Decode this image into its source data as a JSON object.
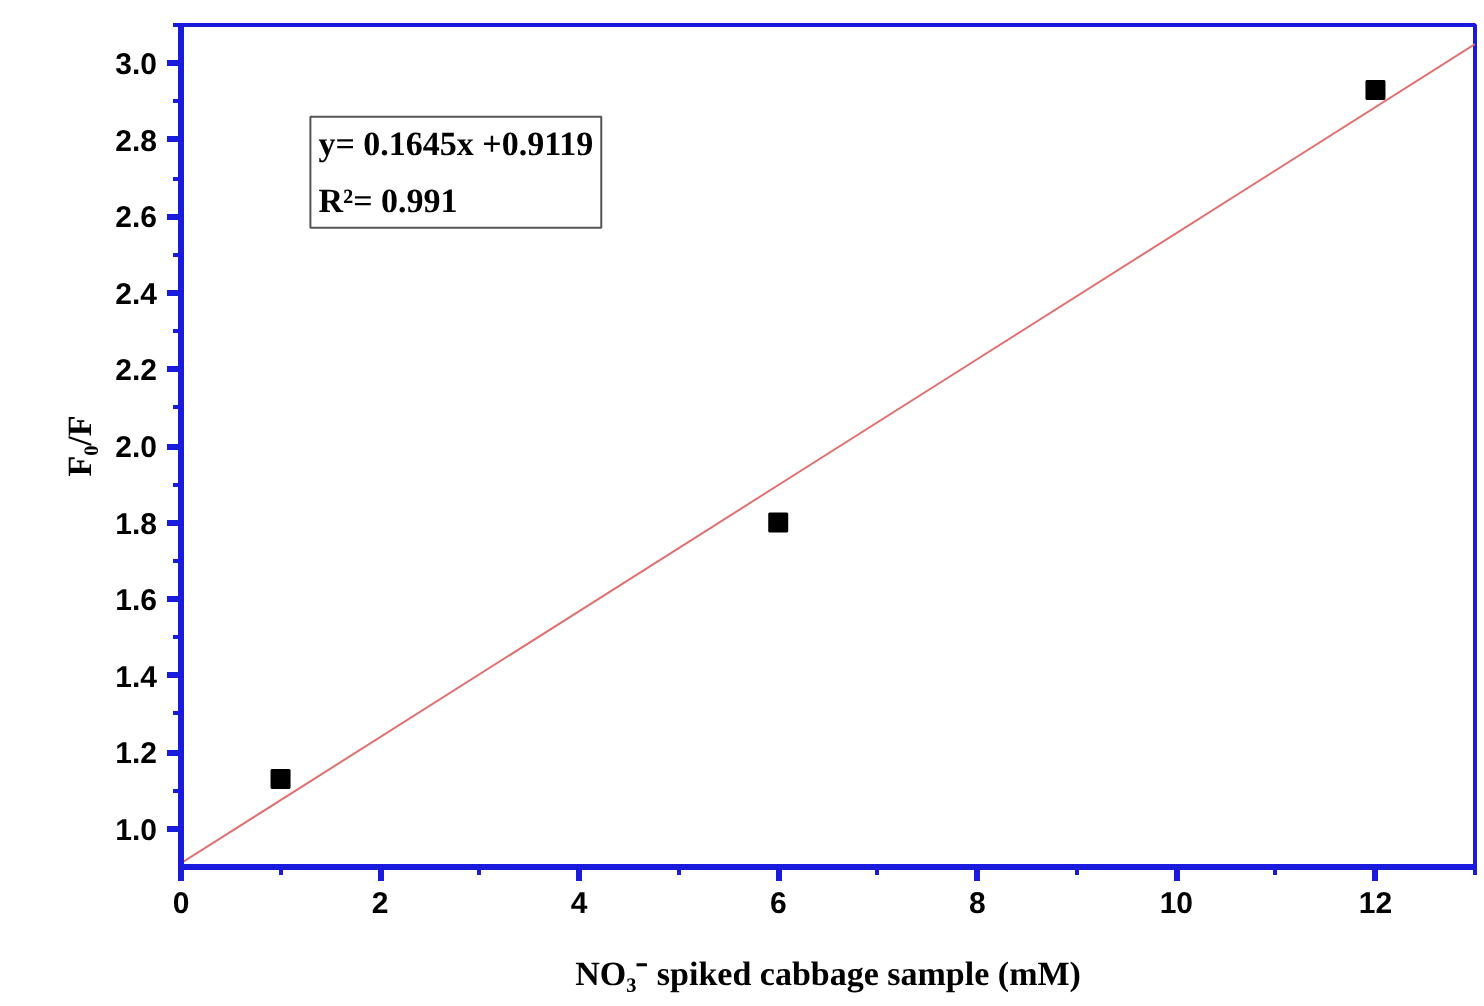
{
  "chart_data": {
    "type": "scatter",
    "xlabel": "NO₃⁻ spiked cabbage sample (mM)",
    "ylabel": "F₀/F",
    "annotations": [
      "y= 0.1645x +0.9119",
      "R²= 0.991"
    ],
    "series": [
      {
        "color": "#000000",
        "x": [
          1,
          6,
          12
        ],
        "values": [
          1.13,
          1.8,
          2.93
        ],
        "marker": "square"
      },
      {
        "type": "line",
        "color": "#e07070",
        "x": [
          0,
          13
        ],
        "values": [
          0.91,
          3.05
        ],
        "line_style": "solid",
        "marker": "none"
      }
    ],
    "xlim": [
      0,
      13
    ],
    "ylim": [
      0.9,
      3.1
    ],
    "xticks": [
      0,
      2,
      4,
      6,
      8,
      10,
      12
    ],
    "yticks": [
      {
        "value": 1.0,
        "label": "1.0"
      },
      {
        "value": 1.2,
        "label": "1.2"
      },
      {
        "value": 1.4,
        "label": "1.4"
      },
      {
        "value": 1.6,
        "label": "1.6"
      },
      {
        "value": 1.8,
        "label": "1.8"
      },
      {
        "value": 2.0,
        "label": "2.0"
      },
      {
        "value": 2.2,
        "label": "2.2"
      },
      {
        "value": 2.4,
        "label": "2.4"
      },
      {
        "value": 2.6,
        "label": "2.6"
      },
      {
        "value": 2.8,
        "label": "2.8"
      },
      {
        "value": 3.0,
        "label": "3.0"
      }
    ],
    "grid": false
  }
}
